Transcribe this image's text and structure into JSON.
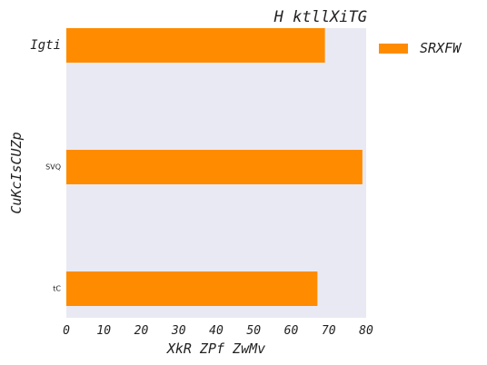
{
  "chart_data": {
    "type": "bar",
    "orientation": "horizontal",
    "title": "H ktllXiTG",
    "xlabel": "XkR ZPf  ZwMv",
    "ylabel": "CuKcIsCUZp",
    "categories": [
      "Igti",
      "SVQ",
      "tC"
    ],
    "series": [
      {
        "name": "SRXFW",
        "values": [
          69,
          79,
          67
        ],
        "color": "#ff8c00"
      }
    ],
    "xlim": [
      0,
      80
    ],
    "xticks": [
      "0",
      "10",
      "20",
      "30",
      "40",
      "50",
      "60",
      "70",
      "80"
    ],
    "grid": false,
    "legend_position": "right",
    "background_color": "#e9e9f3"
  }
}
